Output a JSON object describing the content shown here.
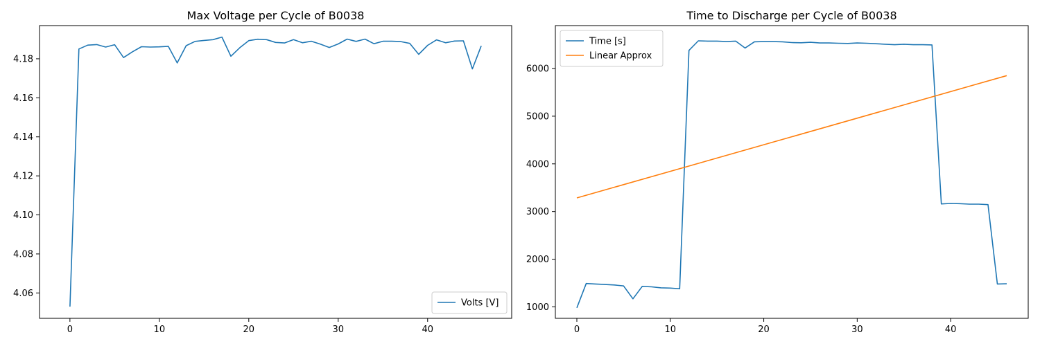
{
  "chart_data": [
    {
      "type": "line",
      "title": "Max Voltage per Cycle of B0038",
      "xlabel": "",
      "ylabel": "",
      "xlim": [
        -3.4,
        49.4
      ],
      "ylim": [
        4.047,
        4.197
      ],
      "xticks": [
        0,
        10,
        20,
        30,
        40
      ],
      "yticks": [
        4.06,
        4.08,
        4.1,
        4.12,
        4.14,
        4.16,
        4.18
      ],
      "ytick_decimals": 2,
      "legend_position": "lower right",
      "series": [
        {
          "name": "Volts [V]",
          "color": "#1f77b4",
          "x": [
            0,
            1,
            2,
            3,
            4,
            5,
            6,
            7,
            8,
            9,
            10,
            11,
            12,
            13,
            14,
            15,
            16,
            17,
            18,
            19,
            20,
            21,
            22,
            23,
            24,
            25,
            26,
            27,
            28,
            29,
            30,
            31,
            32,
            33,
            34,
            35,
            36,
            37,
            38,
            39,
            40,
            41,
            42,
            43,
            44,
            45,
            46
          ],
          "y": [
            4.053,
            4.185,
            4.187,
            4.1873,
            4.186,
            4.1872,
            4.1806,
            4.1836,
            4.1862,
            4.186,
            4.1861,
            4.1864,
            4.1779,
            4.1867,
            4.1889,
            4.1894,
            4.1898,
            4.1911,
            4.1813,
            4.1857,
            4.1893,
            4.19,
            4.1898,
            4.1884,
            4.1881,
            4.1898,
            4.1882,
            4.189,
            4.1875,
            4.1858,
            4.1876,
            4.1901,
            4.1889,
            4.1901,
            4.1877,
            4.189,
            4.189,
            4.1888,
            4.1879,
            4.1823,
            4.1869,
            4.1897,
            4.1882,
            4.1891,
            4.1892,
            4.1748,
            4.1866
          ]
        }
      ]
    },
    {
      "type": "line",
      "title": "Time to Discharge per Cycle of B0038",
      "xlabel": "",
      "ylabel": "",
      "xlim": [
        -2.3,
        48.3
      ],
      "ylim": [
        760,
        6900
      ],
      "xticks": [
        0,
        10,
        20,
        30,
        40
      ],
      "yticks": [
        1000,
        2000,
        3000,
        4000,
        5000,
        6000
      ],
      "ytick_decimals": 0,
      "legend_position": "upper left",
      "series": [
        {
          "name": "Time [s]",
          "color": "#1f77b4",
          "x": [
            0,
            1,
            2,
            3,
            4,
            5,
            6,
            7,
            8,
            9,
            10,
            11,
            12,
            13,
            14,
            15,
            16,
            17,
            18,
            19,
            20,
            21,
            22,
            23,
            24,
            25,
            26,
            27,
            28,
            29,
            30,
            31,
            32,
            33,
            34,
            35,
            36,
            37,
            38,
            39,
            40,
            41,
            42,
            43,
            44,
            45,
            46
          ],
          "y": [
            980,
            1490,
            1480,
            1470,
            1460,
            1440,
            1170,
            1430,
            1420,
            1400,
            1395,
            1380,
            6380,
            6580,
            6575,
            6575,
            6565,
            6575,
            6430,
            6560,
            6565,
            6565,
            6560,
            6545,
            6540,
            6550,
            6535,
            6535,
            6530,
            6525,
            6535,
            6530,
            6520,
            6510,
            6500,
            6510,
            6500,
            6500,
            6495,
            3160,
            3170,
            3165,
            3155,
            3155,
            3145,
            1480,
            1485
          ]
        },
        {
          "name": "Linear Approx",
          "color": "#ff7f0e",
          "x": [
            0,
            46
          ],
          "y": [
            3285,
            5850
          ]
        }
      ]
    }
  ]
}
